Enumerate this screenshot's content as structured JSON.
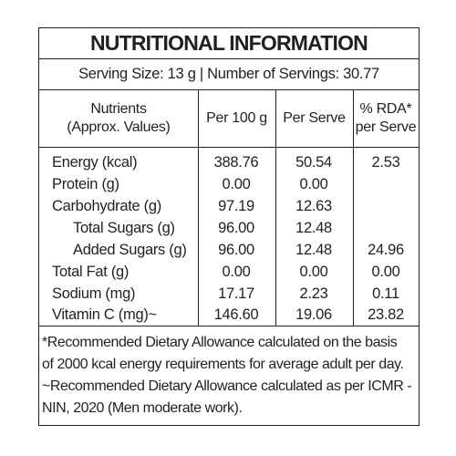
{
  "label": {
    "title": "NUTRITIONAL INFORMATION",
    "serving_line": "Serving Size: 13 g  |  Number of Servings: 30.77",
    "headers": {
      "nutrients_line1": "Nutrients",
      "nutrients_line2": "(Approx. Values)",
      "per100": "Per 100 g",
      "per_serve": "Per Serve",
      "rda_line1": "% RDA*",
      "rda_line2": "per Serve"
    },
    "rows": [
      {
        "name": "Energy (kcal)",
        "per100": "388.76",
        "per_serve": "50.54",
        "rda": "2.53"
      },
      {
        "name": "Protein (g)",
        "per100": "0.00",
        "per_serve": "0.00",
        "rda": ""
      },
      {
        "name": "Carbohydrate (g)",
        "per100": "97.19",
        "per_serve": "12.63",
        "rda": ""
      },
      {
        "name": "Total Sugars (g)",
        "per100": "96.00",
        "per_serve": "12.48",
        "rda": ""
      },
      {
        "name": "Added Sugars (g)",
        "per100": "96.00",
        "per_serve": "12.48",
        "rda": "24.96"
      },
      {
        "name": "Total Fat (g)",
        "per100": "0.00",
        "per_serve": "0.00",
        "rda": "0.00"
      },
      {
        "name": "Sodium (mg)",
        "per100": "17.17",
        "per_serve": "2.23",
        "rda": "0.11"
      },
      {
        "name": "Vitamin C (mg)~",
        "per100": "146.60",
        "per_serve": "19.06",
        "rda": "23.82"
      }
    ],
    "footnotes": [
      "*Recommended Dietary Allowance calculated on the basis",
      "of 2000 kcal energy requirements for average adult per day.",
      "~Recommended Dietary Allowance calculated as per ICMR -",
      "NIN, 2020 (Men moderate work)."
    ]
  }
}
